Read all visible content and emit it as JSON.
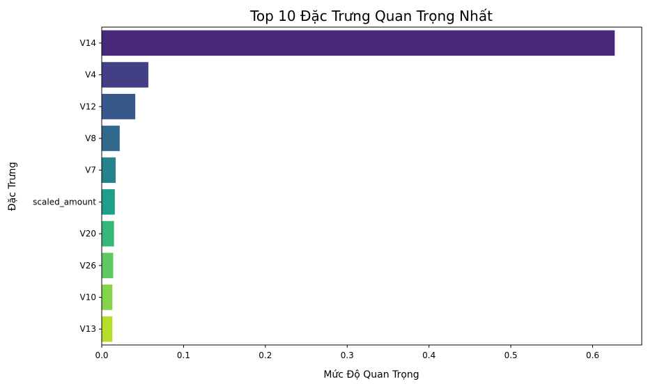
{
  "chart_data": {
    "type": "bar",
    "orientation": "horizontal",
    "title": "Top 10 Đặc Trưng Quan Trọng Nhất",
    "xlabel": "Mức Độ Quan Trọng",
    "ylabel": "Đặc Trưng",
    "categories": [
      "V14",
      "V4",
      "V12",
      "V8",
      "V7",
      "scaled_amount",
      "V20",
      "V26",
      "V10",
      "V13"
    ],
    "values": [
      0.627,
      0.057,
      0.041,
      0.022,
      0.017,
      0.016,
      0.015,
      0.014,
      0.013,
      0.013
    ],
    "colors": [
      "#482878",
      "#433f85",
      "#38588c",
      "#31688e",
      "#26828e",
      "#1f9e89",
      "#35b779",
      "#5ec962",
      "#84d44b",
      "#b5de2b"
    ],
    "xlim": [
      0,
      0.66
    ],
    "xticks": [
      "0.0",
      "0.1",
      "0.2",
      "0.3",
      "0.4",
      "0.5",
      "0.6"
    ],
    "grid": false,
    "legend": "none"
  }
}
